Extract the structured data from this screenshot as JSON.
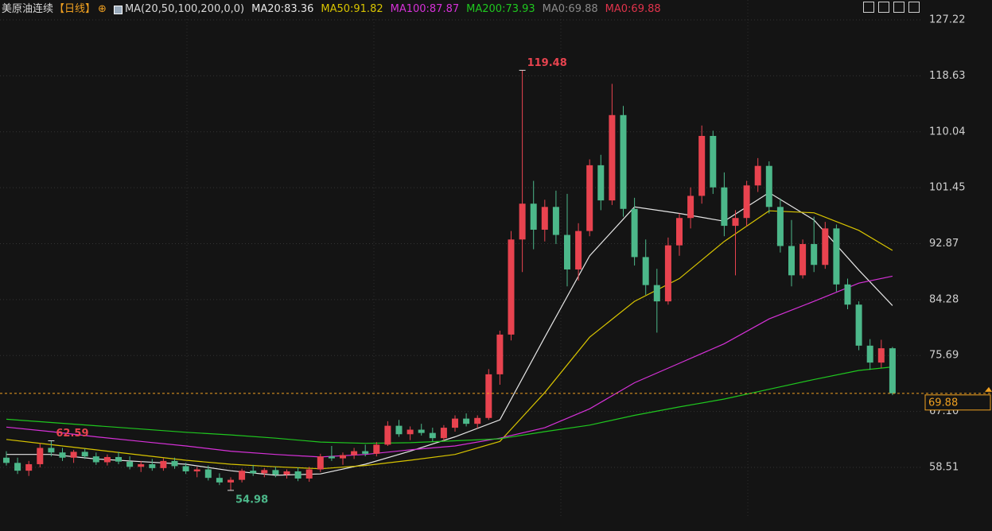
{
  "chart_data": {
    "type": "candlestick",
    "header": {
      "title": "美原油连续",
      "period": "【日线】",
      "ma_params": "MA(20,50,100,200,0,0)"
    },
    "up_color": "#e8434f",
    "down_color": "#4cb88a",
    "background": "#141414",
    "ylim": [
      50.94,
      130.27
    ],
    "yticks": [
      127.22,
      118.63,
      110.04,
      101.45,
      92.87,
      84.28,
      75.69,
      {
        "value": 67.1,
        "label": "67.10"
      },
      58.51
    ],
    "grid": true,
    "ohlc": [
      [
        60.0,
        61.0,
        58.8,
        59.2
      ],
      [
        59.2,
        60.0,
        57.5,
        58.0
      ],
      [
        58.0,
        59.5,
        57.2,
        59.0
      ],
      [
        59.0,
        62.2,
        58.5,
        61.5
      ],
      [
        61.5,
        62.59,
        60.2,
        60.8
      ],
      [
        60.8,
        61.5,
        59.5,
        60.0
      ],
      [
        60.0,
        61.2,
        59.2,
        60.9
      ],
      [
        60.9,
        61.4,
        59.8,
        60.2
      ],
      [
        60.2,
        60.8,
        58.9,
        59.3
      ],
      [
        59.3,
        60.5,
        58.8,
        60.1
      ],
      [
        60.1,
        60.9,
        59.0,
        59.4
      ],
      [
        59.4,
        60.2,
        58.2,
        58.6
      ],
      [
        58.6,
        59.5,
        57.8,
        59.0
      ],
      [
        59.0,
        59.8,
        58.0,
        58.4
      ],
      [
        58.4,
        59.9,
        58.0,
        59.5
      ],
      [
        59.5,
        60.0,
        58.3,
        58.7
      ],
      [
        58.7,
        59.2,
        57.5,
        57.9
      ],
      [
        57.9,
        58.6,
        57.0,
        58.2
      ],
      [
        58.2,
        58.8,
        56.5,
        56.9
      ],
      [
        56.9,
        57.6,
        55.8,
        56.2
      ],
      [
        56.2,
        57.0,
        54.98,
        56.6
      ],
      [
        56.6,
        58.3,
        56.2,
        58.0
      ],
      [
        58.0,
        58.9,
        57.2,
        57.6
      ],
      [
        57.6,
        58.4,
        57.0,
        58.1
      ],
      [
        58.1,
        58.6,
        57.0,
        57.4
      ],
      [
        57.4,
        58.2,
        56.8,
        57.9
      ],
      [
        57.9,
        58.5,
        56.4,
        56.8
      ],
      [
        56.8,
        58.6,
        56.3,
        58.2
      ],
      [
        58.2,
        60.6,
        57.8,
        60.2
      ],
      [
        60.2,
        61.8,
        59.5,
        59.9
      ],
      [
        59.9,
        60.8,
        58.9,
        60.4
      ],
      [
        60.4,
        61.5,
        59.8,
        61.0
      ],
      [
        61.0,
        62.0,
        60.2,
        60.6
      ],
      [
        60.6,
        62.4,
        60.2,
        62.0
      ],
      [
        62.0,
        65.6,
        61.8,
        64.9
      ],
      [
        64.9,
        65.8,
        63.2,
        63.6
      ],
      [
        63.6,
        64.8,
        62.7,
        64.3
      ],
      [
        64.3,
        65.2,
        63.4,
        63.8
      ],
      [
        63.8,
        64.6,
        62.5,
        63.0
      ],
      [
        63.0,
        65.0,
        62.6,
        64.6
      ],
      [
        64.6,
        66.5,
        64.0,
        66.0
      ],
      [
        66.0,
        66.8,
        64.8,
        65.2
      ],
      [
        65.2,
        66.5,
        64.5,
        66.1
      ],
      [
        66.1,
        73.6,
        65.8,
        72.8
      ],
      [
        72.8,
        79.5,
        71.2,
        78.9
      ],
      [
        78.9,
        94.8,
        78.0,
        93.5
      ],
      [
        93.5,
        119.48,
        88.5,
        99.0
      ],
      [
        99.0,
        102.5,
        92.0,
        95.0
      ],
      [
        95.0,
        99.6,
        93.2,
        98.5
      ],
      [
        98.5,
        101.0,
        92.8,
        94.2
      ],
      [
        94.2,
        100.5,
        86.3,
        88.9
      ],
      [
        88.9,
        96.0,
        87.2,
        94.8
      ],
      [
        94.8,
        105.8,
        94.0,
        104.9
      ],
      [
        104.9,
        106.5,
        98.0,
        99.5
      ],
      [
        99.5,
        117.4,
        98.8,
        112.6
      ],
      [
        112.6,
        114.0,
        97.0,
        98.2
      ],
      [
        98.2,
        99.9,
        89.5,
        90.8
      ],
      [
        90.8,
        93.5,
        85.0,
        86.5
      ],
      [
        86.5,
        89.0,
        79.2,
        84.0
      ],
      [
        84.0,
        93.8,
        83.5,
        92.6
      ],
      [
        92.6,
        97.5,
        91.0,
        96.8
      ],
      [
        96.8,
        101.5,
        95.2,
        100.2
      ],
      [
        100.2,
        111.0,
        99.0,
        109.4
      ],
      [
        109.4,
        110.2,
        100.5,
        101.5
      ],
      [
        101.5,
        103.8,
        94.0,
        95.6
      ],
      [
        95.6,
        98.0,
        88.0,
        96.8
      ],
      [
        96.8,
        102.5,
        95.5,
        101.8
      ],
      [
        101.8,
        106.0,
        100.8,
        104.8
      ],
      [
        104.8,
        105.5,
        97.5,
        98.5
      ],
      [
        98.5,
        99.8,
        91.5,
        92.5
      ],
      [
        92.5,
        96.5,
        86.3,
        88.0
      ],
      [
        88.0,
        93.5,
        87.5,
        92.8
      ],
      [
        92.8,
        97.0,
        88.5,
        89.6
      ],
      [
        89.6,
        96.2,
        89.0,
        95.2
      ],
      [
        95.2,
        95.8,
        85.5,
        86.6
      ],
      [
        86.6,
        87.5,
        82.8,
        83.5
      ],
      [
        83.5,
        84.0,
        76.5,
        77.2
      ],
      [
        77.2,
        78.2,
        73.5,
        74.6
      ],
      [
        74.6,
        78.1,
        73.8,
        76.8
      ],
      [
        76.8,
        77.0,
        69.6,
        69.88
      ]
    ],
    "ma_index": [
      0,
      4,
      8,
      12,
      16,
      20,
      24,
      28,
      32,
      36,
      40,
      44,
      48,
      52,
      56,
      60,
      64,
      68,
      72,
      76,
      79
    ],
    "series": [
      {
        "name": "MA20:83.36",
        "color": "#e6e6e6",
        "values": [
          60.5,
          60.5,
          59.8,
          59.4,
          59.0,
          58.0,
          57.3,
          57.5,
          59.0,
          61.0,
          63.2,
          65.8,
          78.5,
          91.0,
          98.5,
          97.5,
          96.3,
          100.7,
          96.5,
          88.8,
          83.36
        ]
      },
      {
        "name": "MA50:91.82",
        "color": "#d8c400",
        "values": [
          62.8,
          62.0,
          61.2,
          60.4,
          59.6,
          59.0,
          58.6,
          58.3,
          58.8,
          59.6,
          60.5,
          62.5,
          70.0,
          78.5,
          84.0,
          87.5,
          93.2,
          97.9,
          97.6,
          94.9,
          91.82
        ]
      },
      {
        "name": "MA100:87.87",
        "color": "#d631d8",
        "values": [
          64.7,
          64.0,
          63.2,
          62.5,
          61.8,
          61.0,
          60.5,
          60.1,
          60.5,
          61.2,
          61.8,
          63.0,
          64.6,
          67.5,
          71.5,
          74.5,
          77.5,
          81.3,
          84.0,
          86.8,
          87.87
        ]
      },
      {
        "name": "MA200:73.93",
        "color": "#1fc71f",
        "values": [
          65.9,
          65.4,
          64.9,
          64.4,
          63.9,
          63.5,
          63.0,
          62.4,
          62.2,
          62.3,
          62.6,
          62.9,
          64.0,
          65.0,
          66.5,
          67.8,
          69.0,
          70.5,
          72.0,
          73.4,
          73.93
        ]
      }
    ],
    "legend_extra": [
      {
        "label": "MA0:69.88",
        "color": "#8a8a8a"
      },
      {
        "label": "MA0:69.88",
        "color": "#e0334b"
      }
    ],
    "annotations": [
      {
        "index": 46,
        "value": 119.48,
        "color": "#e8434f",
        "side": "high"
      },
      {
        "index": 4,
        "value": 62.59,
        "color": "#e8434f",
        "side": "high"
      },
      {
        "index": 20,
        "value": 54.98,
        "color": "#4cb88a",
        "side": "low"
      }
    ],
    "last_price": {
      "value": 69.88,
      "color": "#f0a020"
    }
  }
}
